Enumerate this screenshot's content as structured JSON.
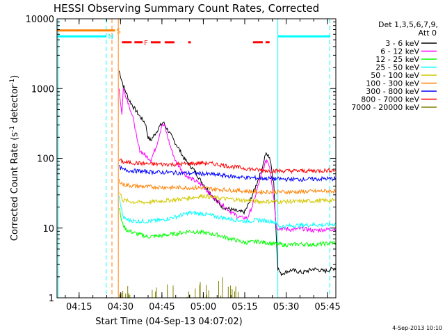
{
  "chart_data": {
    "type": "line",
    "title": "HESSI Observing Summary Count Rates, Corrected",
    "ylabel_main": "Corrected Count Rate (s",
    "ylabel_exp1": "-1",
    "ylabel_mid": " detector",
    "ylabel_exp2": "-1",
    "ylabel_end": ")",
    "xlabel": "Start Time (04-Sep-13 04:07:02)",
    "stamp": "4-Sep-2013 10:10",
    "y_scale": "log",
    "ylim": [
      1,
      10000
    ],
    "xlim_min": [
      7.0,
      108.0
    ],
    "y_ticks": [
      {
        "v": 10000,
        "label": "10000"
      },
      {
        "v": 1000,
        "label": "1000"
      },
      {
        "v": 100,
        "label": "100"
      },
      {
        "v": 10,
        "label": "10"
      },
      {
        "v": 1,
        "label": "1"
      }
    ],
    "x_ticks": [
      {
        "m": 15,
        "label": "04:15"
      },
      {
        "m": 30,
        "label": "04:30"
      },
      {
        "m": 45,
        "label": "04:45"
      },
      {
        "m": 60,
        "label": "05:00"
      },
      {
        "m": 75,
        "label": "05:15"
      },
      {
        "m": 90,
        "label": "05:30"
      },
      {
        "m": 105,
        "label": "05:45"
      }
    ],
    "legend": {
      "header1": "Det 1,3,5,6,7,9,",
      "header2": "Att 0",
      "placement": "outside-right"
    },
    "series": [
      {
        "name": "3 - 6 keV",
        "color": "#000000",
        "points": [
          [
            29.5,
            1800
          ],
          [
            31,
            1100
          ],
          [
            33,
            700
          ],
          [
            35,
            520
          ],
          [
            37,
            400
          ],
          [
            39,
            320
          ],
          [
            40,
            200
          ],
          [
            41,
            180
          ],
          [
            42,
            210
          ],
          [
            43,
            240
          ],
          [
            44,
            280
          ],
          [
            45.5,
            330
          ],
          [
            47,
            260
          ],
          [
            49,
            190
          ],
          [
            51,
            140
          ],
          [
            53,
            100
          ],
          [
            55,
            80
          ],
          [
            57,
            65
          ],
          [
            59,
            48
          ],
          [
            61,
            38
          ],
          [
            63,
            30
          ],
          [
            65,
            24
          ],
          [
            67,
            20
          ],
          [
            69,
            19
          ],
          [
            71,
            18
          ],
          [
            73,
            17
          ],
          [
            75,
            17
          ],
          [
            77,
            25
          ],
          [
            79,
            40
          ],
          [
            81,
            65
          ],
          [
            82.5,
            115
          ],
          [
            84,
            105
          ],
          [
            85.5,
            45
          ],
          [
            87,
            2.7
          ],
          [
            88,
            2.2
          ],
          [
            92,
            2.5
          ],
          [
            96,
            2.3
          ],
          [
            100,
            2.6
          ],
          [
            104,
            2.4
          ],
          [
            108,
            2.7
          ]
        ]
      },
      {
        "name": "6 - 12 keV",
        "color": "#ff00ff",
        "points": [
          [
            29.5,
            1000
          ],
          [
            30.5,
            420
          ],
          [
            31,
            1000
          ],
          [
            33,
            600
          ],
          [
            35,
            320
          ],
          [
            36,
            180
          ],
          [
            37,
            130
          ],
          [
            39,
            110
          ],
          [
            41,
            95
          ],
          [
            43,
            150
          ],
          [
            45,
            300
          ],
          [
            46,
            290
          ],
          [
            48,
            150
          ],
          [
            50,
            90
          ],
          [
            52,
            70
          ],
          [
            54,
            55
          ],
          [
            56,
            50
          ],
          [
            58,
            45
          ],
          [
            60,
            40
          ],
          [
            62,
            32
          ],
          [
            64,
            26
          ],
          [
            66,
            23
          ],
          [
            68,
            20
          ],
          [
            70,
            17
          ],
          [
            72,
            15
          ],
          [
            74,
            14
          ],
          [
            76,
            14
          ],
          [
            78,
            22
          ],
          [
            80,
            42
          ],
          [
            82,
            78
          ],
          [
            83,
            95
          ],
          [
            84,
            78
          ],
          [
            85.5,
            28
          ],
          [
            86.5,
            10
          ],
          [
            92,
            9.5
          ],
          [
            96,
            9.8
          ],
          [
            100,
            9.2
          ],
          [
            104,
            9.5
          ],
          [
            108,
            9.7
          ]
        ]
      },
      {
        "name": "12 - 25 keV",
        "color": "#00ff00",
        "points": [
          [
            29.5,
            20
          ],
          [
            30.5,
            12
          ],
          [
            32,
            9.5
          ],
          [
            35,
            8.5
          ],
          [
            40,
            7.5
          ],
          [
            45,
            7.8
          ],
          [
            50,
            8.3
          ],
          [
            55,
            9.0
          ],
          [
            60,
            8.6
          ],
          [
            65,
            8.0
          ],
          [
            70,
            7.0
          ],
          [
            75,
            6.2
          ],
          [
            80,
            6.4
          ],
          [
            85,
            6.0
          ],
          [
            90,
            5.7
          ],
          [
            95,
            5.9
          ],
          [
            100,
            5.8
          ],
          [
            105,
            6.0
          ],
          [
            108,
            6.2
          ]
        ]
      },
      {
        "name": "25 - 50 keV",
        "color": "#00ffff",
        "points": [
          [
            29.5,
            28
          ],
          [
            31,
            14
          ],
          [
            33,
            13
          ],
          [
            36,
            12.5
          ],
          [
            40,
            12.5
          ],
          [
            45,
            13
          ],
          [
            50,
            14.5
          ],
          [
            55,
            16.5
          ],
          [
            60,
            16
          ],
          [
            65,
            14.5
          ],
          [
            70,
            13.5
          ],
          [
            75,
            12.5
          ],
          [
            80,
            13
          ],
          [
            85,
            12.5
          ],
          [
            88,
            10.5
          ],
          [
            92,
            10.8
          ],
          [
            96,
            11
          ],
          [
            100,
            11.2
          ],
          [
            104,
            11
          ],
          [
            108,
            11.5
          ]
        ]
      },
      {
        "name": "50 - 100 keV",
        "color": "#d2c800",
        "points": [
          [
            29.5,
            33
          ],
          [
            31,
            25
          ],
          [
            35,
            23.5
          ],
          [
            40,
            23.5
          ],
          [
            45,
            24.5
          ],
          [
            50,
            25.5
          ],
          [
            55,
            27
          ],
          [
            60,
            29
          ],
          [
            65,
            27
          ],
          [
            70,
            26
          ],
          [
            75,
            25
          ],
          [
            80,
            24
          ],
          [
            85,
            24
          ],
          [
            90,
            24
          ],
          [
            95,
            24
          ],
          [
            100,
            24.5
          ],
          [
            105,
            24.8
          ],
          [
            108,
            25
          ]
        ]
      },
      {
        "name": "100 - 300 keV",
        "color": "#ff8000",
        "points": [
          [
            29.5,
            48
          ],
          [
            31,
            42
          ],
          [
            35,
            40
          ],
          [
            40,
            39
          ],
          [
            45,
            38.5
          ],
          [
            50,
            38
          ],
          [
            55,
            38
          ],
          [
            60,
            37.5
          ],
          [
            65,
            36
          ],
          [
            70,
            35
          ],
          [
            75,
            34
          ],
          [
            80,
            33
          ],
          [
            85,
            33
          ],
          [
            90,
            33
          ],
          [
            95,
            33
          ],
          [
            100,
            33.5
          ],
          [
            105,
            34
          ],
          [
            108,
            34
          ]
        ]
      },
      {
        "name": "300 - 800 keV",
        "color": "#0000ff",
        "points": [
          [
            29.5,
            75
          ],
          [
            31,
            68
          ],
          [
            35,
            66
          ],
          [
            40,
            64
          ],
          [
            45,
            63
          ],
          [
            50,
            62
          ],
          [
            55,
            61
          ],
          [
            60,
            60
          ],
          [
            65,
            58
          ],
          [
            70,
            55
          ],
          [
            75,
            53
          ],
          [
            80,
            52
          ],
          [
            85,
            51
          ],
          [
            90,
            50
          ],
          [
            95,
            50
          ],
          [
            100,
            50.5
          ],
          [
            105,
            51
          ],
          [
            108,
            51
          ]
        ]
      },
      {
        "name": "800 - 7000 keV",
        "color": "#ff0000",
        "points": [
          [
            29.5,
            95
          ],
          [
            31,
            88
          ],
          [
            35,
            86
          ],
          [
            40,
            83
          ],
          [
            45,
            82
          ],
          [
            50,
            82
          ],
          [
            55,
            84
          ],
          [
            60,
            86
          ],
          [
            65,
            82
          ],
          [
            70,
            76
          ],
          [
            75,
            72
          ],
          [
            80,
            68
          ],
          [
            85,
            66
          ],
          [
            90,
            66
          ],
          [
            95,
            66
          ],
          [
            100,
            66
          ],
          [
            105,
            67
          ],
          [
            108,
            68
          ]
        ]
      },
      {
        "name": "7000 - 20000 keV",
        "color": "#808000",
        "points": [
          [
            30,
            1.5
          ],
          [
            32,
            1.3
          ],
          [
            34,
            1.7
          ],
          [
            42,
            1.4
          ],
          [
            48,
            1.6
          ],
          [
            54,
            1.3
          ],
          [
            58,
            1.8
          ],
          [
            62,
            1.5
          ],
          [
            66,
            1.9
          ],
          [
            70,
            1.5
          ],
          [
            72,
            1.4
          ]
        ]
      }
    ],
    "bars": [
      {
        "label": "S",
        "y": 6800,
        "x0": 7.0,
        "x1": 28.0,
        "color": "#ff8000"
      },
      {
        "label": "N",
        "y": 5600,
        "x0": 7.0,
        "x1": 25.0,
        "color": "#00ffff"
      },
      {
        "label": "",
        "y": 5600,
        "x0": 87.0,
        "x1": 106.0,
        "color": "#00ffff"
      },
      {
        "label": "F",
        "y": 4600,
        "x0": 30.5,
        "x1": 38.0,
        "color": "#ff0000"
      },
      {
        "label": "",
        "y": 4600,
        "x0": 41.0,
        "x1": 44.5,
        "color": "#ff0000"
      },
      {
        "label": "",
        "y": 4600,
        "x0": 46.0,
        "x1": 50.0,
        "color": "#ff0000"
      },
      {
        "label": "",
        "y": 4600,
        "x0": 54.5,
        "x1": 55.5,
        "color": "#ff0000"
      },
      {
        "label": "",
        "y": 4600,
        "x0": 78.0,
        "x1": 84.0,
        "color": "#ff0000"
      }
    ],
    "vlines": [
      {
        "m": 7.4,
        "color": "#00ffff",
        "style": "solid"
      },
      {
        "m": 24.8,
        "color": "#00ffff",
        "style": "dashed"
      },
      {
        "m": 26.9,
        "color": "#ff8000",
        "style": "dashed"
      },
      {
        "m": 29.2,
        "color": "#ff8000",
        "style": "solid"
      },
      {
        "m": 87.0,
        "color": "#00ffff",
        "style": "solid"
      },
      {
        "m": 105.8,
        "color": "#00ffff",
        "style": "dashed"
      }
    ]
  }
}
